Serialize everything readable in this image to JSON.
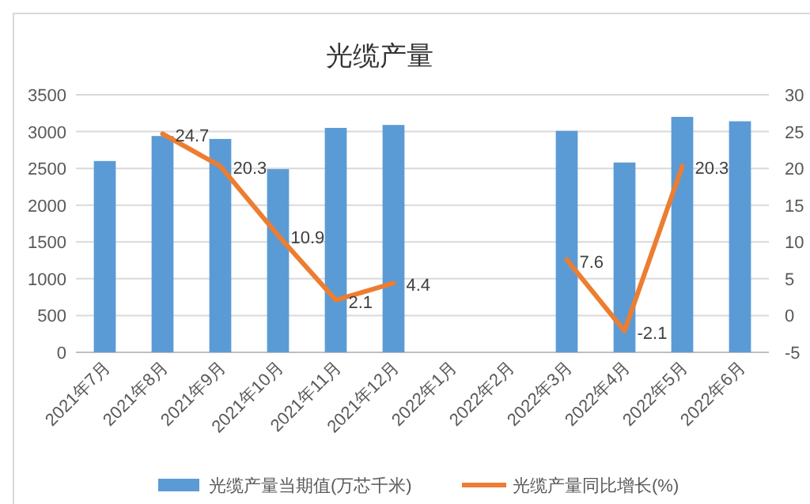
{
  "chart_data": {
    "type": "bar",
    "title": "光缆产量",
    "categories": [
      "2021年7月",
      "2021年8月",
      "2021年9月",
      "2021年10月",
      "2021年11月",
      "2021年12月",
      "2022年1月",
      "2022年2月",
      "2022年3月",
      "2022年4月",
      "2022年5月",
      "2022年6月"
    ],
    "series": [
      {
        "name": "光缆产量当期值(万芯千米)",
        "color": "#5b9bd5",
        "values": [
          2600,
          2940,
          2900,
          2490,
          3050,
          3090,
          null,
          null,
          3010,
          2580,
          3200,
          3140
        ]
      },
      {
        "name": "光缆产量同比增长(%)",
        "type": "line",
        "axis": "y2",
        "color": "#ed7d31",
        "values": [
          null,
          24.7,
          20.3,
          10.9,
          2.1,
          4.4,
          null,
          null,
          7.6,
          -2.1,
          20.3,
          null
        ],
        "value_labels": [
          null,
          "24.7",
          "20.3",
          "10.9",
          "2.1",
          "4.4",
          null,
          null,
          "7.6",
          "-2.1",
          "20.3",
          null
        ]
      }
    ],
    "ylim": [
      0,
      3500
    ],
    "yticks": [
      0,
      500,
      1000,
      1500,
      2000,
      2500,
      3000,
      3500
    ],
    "y2lim": [
      -5,
      30
    ],
    "y2ticks": [
      -5,
      0,
      5,
      10,
      15,
      20,
      25,
      30
    ],
    "grid": "y",
    "legend": "bottom"
  }
}
